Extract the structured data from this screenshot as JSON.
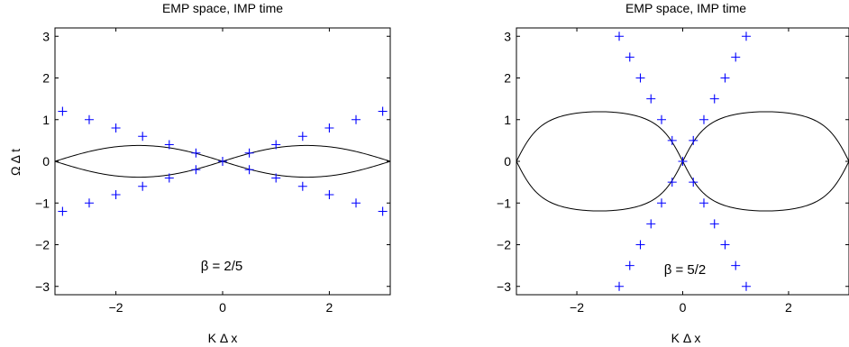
{
  "chart_data": [
    {
      "type": "line",
      "title": "EMP space, IMP time",
      "xlabel": "K Δ x",
      "ylabel": "Ω Δ t",
      "xlim": [
        -3.1416,
        3.1416
      ],
      "ylim": [
        -3.2,
        3.2
      ],
      "xticks": [
        -2,
        0,
        2
      ],
      "xtick_labels": [
        "−2",
        "0",
        "2"
      ],
      "yticks": [
        3,
        2,
        1,
        0,
        -1,
        -2,
        -3
      ],
      "ytick_labels": [
        "3",
        "2",
        "1",
        "0",
        "−1",
        "−2",
        "−3"
      ],
      "annotation": "β = 2/5",
      "grid": false,
      "series": [
        {
          "style": "line",
          "color": "#000000",
          "formula": "+/- atan(beta*sin(K))",
          "beta": 0.4
        },
        {
          "style": "markers",
          "marker": "+",
          "color": "#0000ff",
          "x": [
            -3,
            -2.5,
            -2,
            -1.5,
            -1,
            -0.5,
            0,
            0.5,
            1,
            1.5,
            2,
            2.5,
            3
          ],
          "y_abs": [
            1.2,
            1.0,
            0.8,
            0.6,
            0.4,
            0.2,
            0,
            0.2,
            0.4,
            0.6,
            0.8,
            1.0,
            1.2
          ]
        }
      ]
    },
    {
      "type": "line",
      "title": "EMP space, IMP time",
      "xlabel": "K Δ x",
      "ylabel": "",
      "xlim": [
        -3.1416,
        3.1416
      ],
      "ylim": [
        -3.2,
        3.2
      ],
      "xticks": [
        -2,
        0,
        2
      ],
      "xtick_labels": [
        "−2",
        "0",
        "2"
      ],
      "yticks": [
        3,
        2,
        1,
        0,
        -1,
        -2,
        -3
      ],
      "ytick_labels": [
        "3",
        "2",
        "1",
        "0",
        "−1",
        "−2",
        "−3"
      ],
      "annotation": "β = 5/2",
      "grid": false,
      "series": [
        {
          "style": "line",
          "color": "#000000",
          "formula": "+/- atan(beta*sin(K))",
          "beta": 2.5
        },
        {
          "style": "markers",
          "marker": "+",
          "color": "#0000ff",
          "x": [
            -1.2,
            -1.0,
            -0.8,
            -0.6,
            -0.4,
            -0.2,
            0,
            0.2,
            0.4,
            0.6,
            0.8,
            1.0,
            1.2
          ],
          "y_abs": [
            3.0,
            2.5,
            2.0,
            1.5,
            1.0,
            0.5,
            0,
            0.5,
            1.0,
            1.5,
            2.0,
            2.5,
            3.0
          ]
        }
      ]
    }
  ]
}
